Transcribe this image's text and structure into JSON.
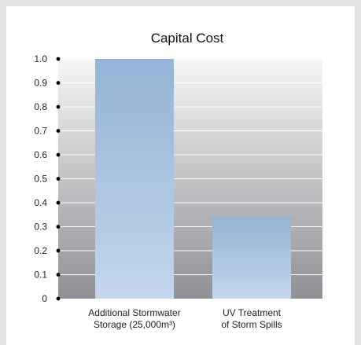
{
  "chart_data": {
    "type": "bar",
    "title": "Capital Cost",
    "categories": [
      [
        "Additional Stormwater",
        "Storage (25,000m³)"
      ],
      [
        "UV Treatment",
        "of Storm Spills"
      ]
    ],
    "values": [
      1.0,
      0.34
    ],
    "ylim": [
      0,
      1.0
    ],
    "yticks": [
      "0",
      "0.1",
      "0.2",
      "0.3",
      "0.4",
      "0.5",
      "0.6",
      "0.7",
      "0.8",
      "0.9",
      "1.0"
    ],
    "grid": true,
    "legend": "none",
    "colors": {
      "bar_top": "#94b3d6",
      "bar_bottom": "#c3d6ec",
      "plot_top": "#f6f6f6",
      "plot_bottom": "#8f9095",
      "grid": "#ffffff",
      "tick_dot": "#000000"
    }
  }
}
